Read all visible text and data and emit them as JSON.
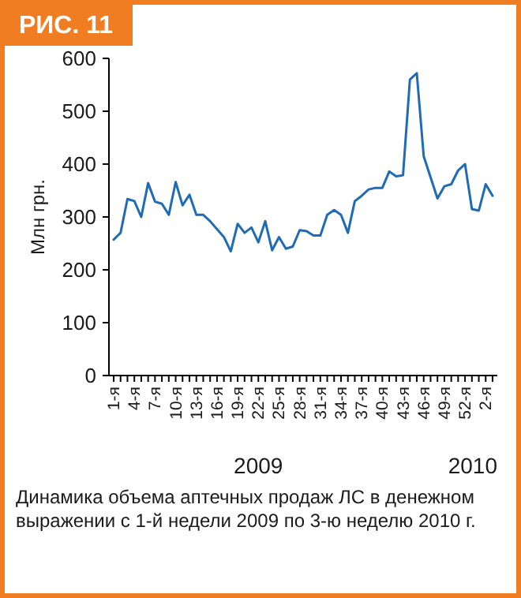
{
  "chart_data": {
    "type": "line",
    "title": "РИС. 11",
    "ylabel": "Млн грн.",
    "categories": [
      "1-я",
      null,
      null,
      "4-я",
      null,
      null,
      "7-я",
      null,
      null,
      "10-я",
      null,
      null,
      "13-я",
      null,
      null,
      "16-я",
      null,
      null,
      "19-я",
      null,
      null,
      "22-я",
      null,
      null,
      "25-я",
      null,
      null,
      "28-я",
      null,
      null,
      "31-я",
      null,
      null,
      "34-я",
      null,
      null,
      "37-я",
      null,
      null,
      "40-я",
      null,
      null,
      "43-я",
      null,
      null,
      "46-я",
      null,
      null,
      "49-я",
      null,
      null,
      "52-я",
      null,
      null,
      "2-я",
      null
    ],
    "series": [
      {
        "color": "#1f6bb5",
        "values": [
          257,
          270,
          334,
          330,
          300,
          364,
          329,
          325,
          304,
          366,
          322,
          342,
          304,
          304,
          292,
          277,
          262,
          235,
          287,
          270,
          280,
          252,
          292,
          237,
          262,
          240,
          244,
          275,
          273,
          265,
          265,
          304,
          313,
          304,
          270,
          330,
          340,
          352,
          355,
          355,
          386,
          377,
          379,
          560,
          572,
          415,
          375,
          335,
          358,
          362,
          388,
          400,
          315,
          312,
          362,
          340
        ]
      }
    ],
    "ylim": [
      0,
      600
    ],
    "yticks": [
      0,
      100,
      200,
      300,
      400,
      500,
      600
    ],
    "grid": false,
    "marker": "none",
    "line_style": "solid",
    "annotations": [
      "2009",
      "2010",
      "Динамика объема аптечных продаж ЛС в денежном выражении с 1-й недели 2009 по 3-ю неделю 2010 г."
    ]
  }
}
